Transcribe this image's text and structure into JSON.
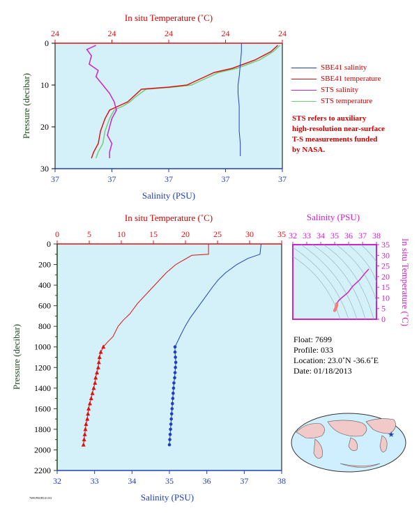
{
  "top_chart": {
    "top_axis_title": "In situ Temperature (˚C)",
    "bottom_axis_title": "Salinity (PSU)",
    "left_axis_title": "Pressure (decibar)",
    "top_ticks": [
      "24",
      "24",
      "24",
      "24",
      "24"
    ],
    "bottom_ticks": [
      "37",
      "37",
      "37",
      "37",
      "37"
    ],
    "left_ticks": [
      "0",
      "10",
      "20",
      "30"
    ]
  },
  "legend": [
    {
      "label": "SBE41 salinity",
      "color": "#1f3fbf"
    },
    {
      "label": "SBE41 temperature",
      "color": "#dd1111"
    },
    {
      "label": "STS salinity",
      "color": "#cc22cc"
    },
    {
      "label": "STS temperature",
      "color": "#77cc77"
    }
  ],
  "note_lines": [
    "STS refers to auxiliary",
    "high-resolution near-surface",
    "T-S measurements funded",
    "by NASA."
  ],
  "bottom_chart": {
    "top_axis_title": "In situ Temperature (˚C)",
    "bottom_axis_title": "Salinity (PSU)",
    "left_axis_title": "Pressure (decibar)",
    "top_ticks": [
      "0",
      "5",
      "10",
      "15",
      "20",
      "25",
      "30",
      "35"
    ],
    "bottom_ticks": [
      "32",
      "33",
      "34",
      "35",
      "36",
      "37",
      "38"
    ],
    "left_ticks": [
      "0",
      "200",
      "400",
      "600",
      "800",
      "1000",
      "1200",
      "1400",
      "1600",
      "1800",
      "2000",
      "2200"
    ]
  },
  "ts_chart": {
    "top_axis_title": "Salinity (PSU)",
    "right_axis_title": "In situ Temperature (˚C)",
    "top_ticks": [
      "32",
      "33",
      "34",
      "35",
      "36",
      "37",
      "38"
    ],
    "right_ticks": [
      "0",
      "5",
      "10",
      "15",
      "20",
      "25",
      "30",
      "35"
    ]
  },
  "float_info": {
    "float": "Float:  7699",
    "profile": "Profile:  033",
    "location": "Location:  23.0˚N  -36.6˚E",
    "date": "Date:  01/18/2013"
  },
  "credit": "7699 PROFILE 033",
  "colors": {
    "plot_bg": "#d4f1f9",
    "temperature": "#dd1111",
    "salinity": "#1f3fbf",
    "sts_salinity": "#cc22cc",
    "sts_temperature": "#77cc77",
    "ts_axis": "#cc22cc",
    "pressure_axis": "#1a4a1a"
  },
  "chart_data": [
    {
      "type": "line",
      "title": "",
      "xlabel": "Salinity (PSU)",
      "x2label": "In situ Temperature (˚C)",
      "ylabel": "Pressure (decibar)",
      "ylim": [
        0,
        30
      ],
      "y_reversed": true,
      "series": [
        {
          "name": "SBE41 salinity",
          "axis": "salinity_frac",
          "points": [
            [
              0.82,
              0
            ],
            [
              0.82,
              2
            ],
            [
              0.815,
              5
            ],
            [
              0.81,
              8
            ],
            [
              0.805,
              10
            ],
            [
              0.805,
              12
            ],
            [
              0.81,
              15
            ],
            [
              0.81,
              18
            ],
            [
              0.81,
              21
            ],
            [
              0.815,
              24
            ],
            [
              0.815,
              27
            ]
          ]
        },
        {
          "name": "SBE41 temperature",
          "axis": "temperature_frac",
          "points": [
            [
              0.98,
              0.5
            ],
            [
              0.95,
              2
            ],
            [
              0.88,
              4
            ],
            [
              0.78,
              6
            ],
            [
              0.7,
              7
            ],
            [
              0.66,
              8
            ],
            [
              0.62,
              9
            ],
            [
              0.58,
              10
            ],
            [
              0.5,
              10.5
            ],
            [
              0.38,
              11
            ],
            [
              0.34,
              13
            ],
            [
              0.32,
              14
            ],
            [
              0.28,
              15
            ],
            [
              0.24,
              16
            ],
            [
              0.22,
              18
            ],
            [
              0.2,
              21
            ],
            [
              0.19,
              24
            ],
            [
              0.17,
              26
            ],
            [
              0.16,
              27.5
            ]
          ]
        },
        {
          "name": "STS salinity",
          "axis": "salinity_frac",
          "points": [
            [
              0.18,
              0.5
            ],
            [
              0.14,
              1.5
            ],
            [
              0.16,
              3
            ],
            [
              0.15,
              5
            ],
            [
              0.19,
              6.5
            ],
            [
              0.18,
              8
            ],
            [
              0.21,
              10
            ],
            [
              0.24,
              12
            ],
            [
              0.26,
              14
            ],
            [
              0.27,
              16
            ],
            [
              0.25,
              18
            ],
            [
              0.24,
              20
            ],
            [
              0.23,
              22
            ],
            [
              0.25,
              24
            ],
            [
              0.24,
              26
            ],
            [
              0.24,
              27.5
            ]
          ]
        },
        {
          "name": "STS temperature",
          "axis": "temperature_frac",
          "points": [
            [
              0.99,
              0.5
            ],
            [
              0.96,
              2
            ],
            [
              0.9,
              4
            ],
            [
              0.8,
              6
            ],
            [
              0.72,
              7
            ],
            [
              0.68,
              8
            ],
            [
              0.64,
              9
            ],
            [
              0.6,
              10
            ],
            [
              0.52,
              10.5
            ],
            [
              0.4,
              11
            ],
            [
              0.35,
              13
            ],
            [
              0.33,
              14
            ],
            [
              0.3,
              15
            ],
            [
              0.26,
              16
            ],
            [
              0.24,
              18
            ],
            [
              0.22,
              21
            ],
            [
              0.21,
              24
            ],
            [
              0.19,
              26
            ],
            [
              0.18,
              27.5
            ]
          ]
        }
      ]
    },
    {
      "type": "line",
      "title": "",
      "xlabel": "Salinity (PSU)",
      "x2label": "In situ Temperature (˚C)",
      "ylabel": "Pressure (decibar)",
      "xlim": [
        32,
        38
      ],
      "x2lim": [
        0,
        35
      ],
      "ylim": [
        0,
        2200
      ],
      "y_reversed": true,
      "series": [
        {
          "name": "temperature",
          "axis": "temperature",
          "points": [
            [
              23.6,
              0
            ],
            [
              23.6,
              100
            ],
            [
              21,
              110
            ],
            [
              18.5,
              200
            ],
            [
              17,
              280
            ],
            [
              15.5,
              380
            ],
            [
              14,
              480
            ],
            [
              12.5,
              580
            ],
            [
              11.3,
              680
            ],
            [
              10.3,
              740
            ],
            [
              9.5,
              800
            ],
            [
              8.7,
              900
            ],
            [
              7.9,
              950
            ],
            [
              7.2,
              1000
            ],
            [
              6.8,
              1050
            ],
            [
              6.6,
              1100
            ],
            [
              6.5,
              1150
            ],
            [
              6.4,
              1200
            ],
            [
              6.2,
              1250
            ],
            [
              6,
              1300
            ],
            [
              5.9,
              1350
            ],
            [
              5.7,
              1400
            ],
            [
              5.5,
              1450
            ],
            [
              5.3,
              1500
            ],
            [
              5.1,
              1550
            ],
            [
              4.9,
              1600
            ],
            [
              4.8,
              1650
            ],
            [
              4.7,
              1700
            ],
            [
              4.5,
              1750
            ],
            [
              4.4,
              1800
            ],
            [
              4.3,
              1850
            ],
            [
              4.2,
              1900
            ],
            [
              4.1,
              1950
            ]
          ]
        },
        {
          "name": "salinity",
          "axis": "salinity",
          "points": [
            [
              37.45,
              0
            ],
            [
              37.42,
              100
            ],
            [
              37.1,
              140
            ],
            [
              36.8,
              200
            ],
            [
              36.5,
              280
            ],
            [
              36.3,
              350
            ],
            [
              36.15,
              420
            ],
            [
              35.95,
              520
            ],
            [
              35.75,
              620
            ],
            [
              35.55,
              720
            ],
            [
              35.42,
              800
            ],
            [
              35.28,
              900
            ],
            [
              35.15,
              1000
            ],
            [
              35.15,
              1050
            ],
            [
              35.16,
              1100
            ],
            [
              35.17,
              1150
            ],
            [
              35.16,
              1200
            ],
            [
              35.15,
              1250
            ],
            [
              35.14,
              1300
            ],
            [
              35.12,
              1350
            ],
            [
              35.11,
              1400
            ],
            [
              35.1,
              1450
            ],
            [
              35.09,
              1500
            ],
            [
              35.08,
              1550
            ],
            [
              35.07,
              1600
            ],
            [
              35.06,
              1650
            ],
            [
              35.05,
              1700
            ],
            [
              35.04,
              1750
            ],
            [
              35.03,
              1800
            ],
            [
              35.02,
              1850
            ],
            [
              35.01,
              1900
            ],
            [
              35.0,
              1950
            ]
          ]
        }
      ]
    },
    {
      "type": "scatter",
      "title": "",
      "xlabel": "Salinity (PSU)",
      "ylabel": "In situ Temperature (˚C)",
      "xlim": [
        32,
        38
      ],
      "ylim": [
        0,
        35
      ],
      "series": [
        {
          "name": "T-S",
          "points": [
            [
              37.45,
              23.6
            ],
            [
              37.1,
              21
            ],
            [
              36.8,
              18.5
            ],
            [
              36.3,
              15.5
            ],
            [
              35.95,
              12.5
            ],
            [
              35.55,
              10.3
            ],
            [
              35.28,
              8.7
            ],
            [
              35.15,
              7.2
            ],
            [
              35.15,
              6.5
            ],
            [
              35.12,
              6.0
            ],
            [
              35.1,
              5.5
            ],
            [
              35.07,
              4.9
            ],
            [
              35.04,
              4.5
            ],
            [
              35.0,
              4.1
            ]
          ]
        }
      ]
    }
  ]
}
